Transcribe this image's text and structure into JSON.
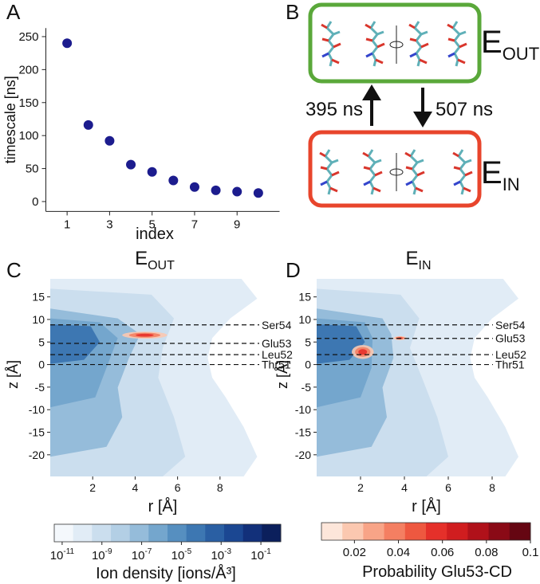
{
  "panels": {
    "a": "A",
    "b": "B",
    "c": "C",
    "d": "D"
  },
  "diagram": {
    "states": [
      {
        "main": "E",
        "sub": "OUT"
      },
      {
        "main": "E",
        "sub": "IN"
      }
    ],
    "transitions": [
      "395 ns",
      "507 ns"
    ]
  },
  "chart_data": [
    {
      "type": "scatter",
      "x": [
        1,
        2,
        3,
        4,
        5,
        6,
        7,
        8,
        9,
        10
      ],
      "values": [
        240,
        116,
        92,
        56,
        45,
        32,
        22,
        17,
        15,
        13
      ],
      "color": "#1c1c8e",
      "xlabel": "index",
      "ylabel": "timescale [ns]",
      "xlim": [
        0,
        11
      ],
      "ylim": [
        -15,
        263
      ],
      "xticks": [
        1,
        3,
        5,
        7,
        9
      ],
      "yticks": [
        0,
        50,
        100,
        150,
        200,
        250
      ]
    },
    {
      "type": "contour",
      "title": {
        "main": "E",
        "sub": "OUT"
      },
      "xlabel": "r [Å]",
      "ylabel": "z [Å]",
      "xlim": [
        0,
        10.6
      ],
      "ylim": [
        -24.8,
        19
      ],
      "xticks": [
        2,
        4,
        6,
        8
      ],
      "yticks": [
        -20,
        -15,
        -10,
        -5,
        0,
        5,
        10,
        15
      ],
      "levels": [
        {
          "name": "Ser54",
          "z": 8.8
        },
        {
          "name": "Glu53",
          "z": 4.7
        },
        {
          "name": "Leu52",
          "z": 2.2
        },
        {
          "name": "Thr51",
          "z": 0
        }
      ],
      "colorbar": {
        "label": "Ion density [ions/Å³]",
        "log": true,
        "lim": [
          4e-12,
          1
        ],
        "ticks": [
          {
            "value": 1e-11,
            "label": "10",
            "exponent": "-11"
          },
          {
            "value": 1e-09,
            "label": "10",
            "exponent": "-9"
          },
          {
            "value": 1e-07,
            "label": "10",
            "exponent": "-7"
          },
          {
            "value": 1e-05,
            "label": "10",
            "exponent": "-5"
          },
          {
            "value": 0.001,
            "label": "10",
            "exponent": "-3"
          },
          {
            "value": 0.1,
            "label": "10",
            "exponent": "-1"
          }
        ],
        "colors": [
          "#f4f8fc",
          "#e1ecf6",
          "#cbdeee",
          "#b3cfe5",
          "#95bcda",
          "#74a6cd",
          "#568fc0",
          "#3d77b2",
          "#2a5fa3",
          "#1b4792",
          "#12307a",
          "#0b1f5c"
        ]
      }
    },
    {
      "type": "contour",
      "title": {
        "main": "E",
        "sub": "IN"
      },
      "xlabel": "r [Å]",
      "ylabel": "z [Å]",
      "xlim": [
        0,
        10
      ],
      "ylim": [
        -24.8,
        19
      ],
      "xticks": [
        2,
        4,
        6,
        8
      ],
      "yticks": [
        -20,
        -15,
        -10,
        -5,
        0,
        5,
        10,
        15
      ],
      "levels": [
        {
          "name": "Ser54",
          "z": 8.8
        },
        {
          "name": "Glu53",
          "z": 5.8
        },
        {
          "name": "Leu52",
          "z": 2.2
        },
        {
          "name": "Thr51",
          "z": 0
        }
      ],
      "colorbar": {
        "label": "Probability Glu53-CD",
        "log": false,
        "lim": [
          0.005,
          0.1
        ],
        "ticks": [
          0.02,
          0.04,
          0.06,
          0.08,
          0.1
        ],
        "colors": [
          "#fde6da",
          "#fbc8b0",
          "#f8a487",
          "#f47f62",
          "#ee5840",
          "#e5302a",
          "#d01d1f",
          "#b0111a",
          "#8a0a16",
          "#650612"
        ]
      }
    }
  ]
}
